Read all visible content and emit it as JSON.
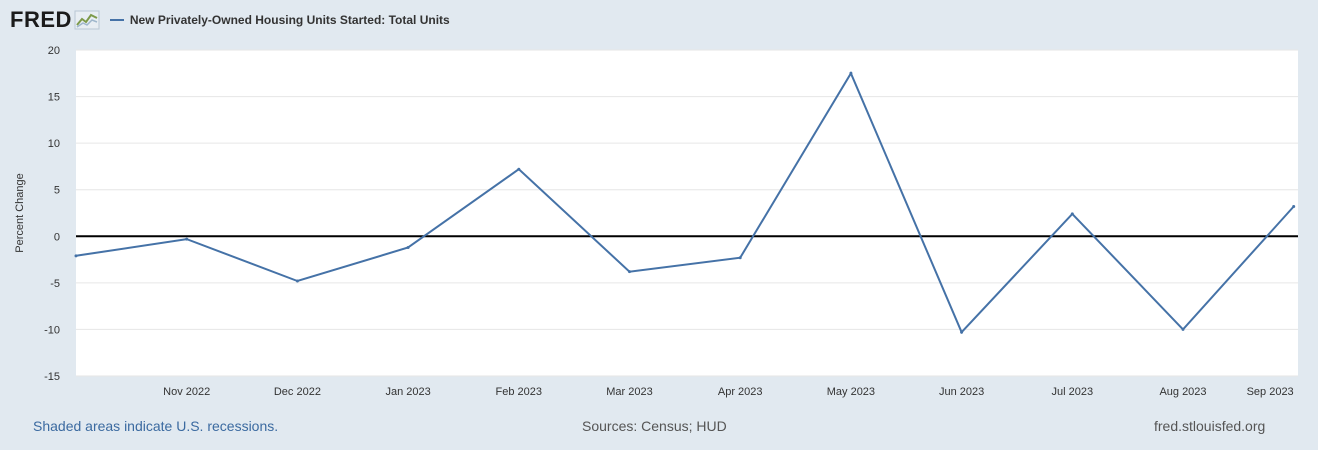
{
  "header": {
    "logo_text": "FRED",
    "series_label": "New Privately-Owned Housing Units Started: Total Units"
  },
  "footer": {
    "recession_note": "Shaded areas indicate U.S. recessions.",
    "sources": "Sources: Census; HUD",
    "site": "fred.stlouisfed.org"
  },
  "colors": {
    "background": "#e1e9f0",
    "plot_background": "#ffffff",
    "series": "#4572a7",
    "zero_line": "#000000",
    "grid": "#e6e6e6"
  },
  "chart_data": {
    "type": "line",
    "ylabel": "Percent Change",
    "ylim": [
      -15,
      20
    ],
    "yticks": [
      -15,
      -10,
      -5,
      0,
      5,
      10,
      15,
      20
    ],
    "grid": true,
    "zero_line": true,
    "x_tick_labels": [
      "Nov 2022",
      "Dec 2022",
      "Jan 2023",
      "Feb 2023",
      "Mar 2023",
      "Apr 2023",
      "May 2023",
      "Jun 2023",
      "Jul 2023",
      "Aug 2023",
      "Sep 2023"
    ],
    "x": [
      "2022-10-01",
      "2022-11-01",
      "2022-12-01",
      "2023-01-01",
      "2023-02-01",
      "2023-03-01",
      "2023-04-01",
      "2023-05-01",
      "2023-06-01",
      "2023-07-01",
      "2023-08-01",
      "2023-09-01"
    ],
    "series": [
      {
        "values": [
          -2.1,
          -0.3,
          -4.8,
          -1.2,
          7.2,
          -3.8,
          -2.3,
          17.5,
          -10.3,
          2.4,
          -10.0,
          3.2
        ]
      }
    ]
  }
}
